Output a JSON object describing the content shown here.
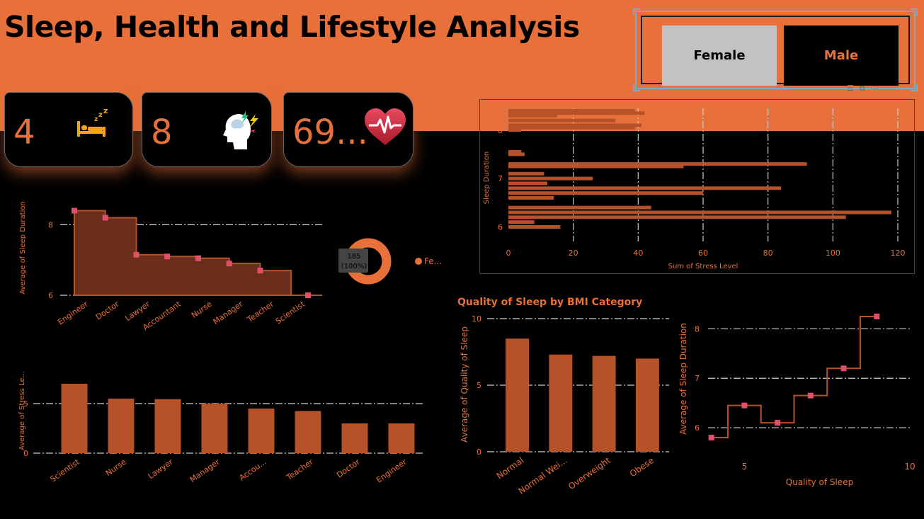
{
  "header": {
    "title": "Sleep, Health and Lifestyle Analysis",
    "slicer": {
      "options": [
        "Female",
        "Male"
      ],
      "selected": "Female"
    }
  },
  "kpis": [
    {
      "value": "4",
      "icon": "bed-sleep-icon"
    },
    {
      "value": "8",
      "icon": "stressed-head-icon"
    },
    {
      "value": "69...",
      "icon": "heart-rate-icon"
    }
  ],
  "colors": {
    "accent": "#e8703a",
    "bar": "#b5522a",
    "marker": "#e0506a",
    "area": "#6a2e1a",
    "slicer_selected": "#c2c2c2"
  },
  "chart_data": [
    {
      "id": "sleep-by-occupation",
      "type": "area",
      "ylabel": "Average of Sleep Duration",
      "categories": [
        "Engineer",
        "Doctor",
        "Lawyer",
        "Accountant",
        "Nurse",
        "Manager",
        "Teacher",
        "Scientist"
      ],
      "values": [
        8.4,
        8.2,
        7.15,
        7.1,
        7.05,
        6.9,
        6.7,
        6.0
      ],
      "yticks": [
        6,
        8
      ],
      "ylim": [
        6,
        8.45
      ],
      "grid": true
    },
    {
      "id": "gender-donut",
      "type": "pie",
      "labels": [
        "Fe..."
      ],
      "values": [
        185
      ],
      "value_label": "185",
      "percent_label": "(100%)"
    },
    {
      "id": "stress-by-sleep-duration",
      "type": "bar",
      "orientation": "horizontal",
      "xlabel": "Sum of Stress Level",
      "ylabel": "Sleep Duration",
      "xticks": [
        0,
        20,
        40,
        60,
        80,
        100,
        120
      ],
      "xlim": [
        0,
        120
      ],
      "yticks": [
        8,
        7,
        6
      ],
      "ylim": [
        5.7,
        8.45
      ],
      "grid": true,
      "points": [
        {
          "y": 8.4,
          "x": 39
        },
        {
          "y": 8.35,
          "x": 42
        },
        {
          "y": 8.3,
          "x": 15
        },
        {
          "y": 8.2,
          "x": 33
        },
        {
          "y": 8.1,
          "x": 41
        },
        {
          "y": 8.05,
          "x": 39
        },
        {
          "y": 8.0,
          "x": 4
        },
        {
          "y": 7.55,
          "x": 4
        },
        {
          "y": 7.5,
          "x": 5
        },
        {
          "y": 7.3,
          "x": 92
        },
        {
          "y": 7.25,
          "x": 54
        },
        {
          "y": 7.1,
          "x": 11
        },
        {
          "y": 7.0,
          "x": 26
        },
        {
          "y": 6.9,
          "x": 12
        },
        {
          "y": 6.8,
          "x": 84
        },
        {
          "y": 6.7,
          "x": 60
        },
        {
          "y": 6.6,
          "x": 14
        },
        {
          "y": 6.4,
          "x": 44
        },
        {
          "y": 6.3,
          "x": 118
        },
        {
          "y": 6.2,
          "x": 104
        },
        {
          "y": 6.1,
          "x": 8
        },
        {
          "y": 6.0,
          "x": 16
        }
      ]
    },
    {
      "id": "stress-by-occupation",
      "type": "bar",
      "ylabel": "Average of Stress Le...",
      "categories": [
        "Scientist",
        "Nurse",
        "Lawyer",
        "Manager",
        "Accou...",
        "Teacher",
        "Doctor",
        "Engineer"
      ],
      "values": [
        7.0,
        5.5,
        5.45,
        5.0,
        4.5,
        4.25,
        3.0,
        3.0
      ],
      "yticks": [
        0,
        5
      ],
      "ylim": [
        0,
        7.5
      ],
      "grid": true
    },
    {
      "id": "sleep-quality-by-bmi",
      "type": "bar",
      "title": "Quality of Sleep by BMI Category",
      "ylabel": "Average of Quality of Sleep",
      "categories": [
        "Normal",
        "Normal Wei...",
        "Overweight",
        "Obese"
      ],
      "values": [
        8.5,
        7.3,
        7.2,
        7.0
      ],
      "yticks": [
        0,
        5,
        10
      ],
      "ylim": [
        0,
        10
      ],
      "grid": true
    },
    {
      "id": "sleep-duration-by-quality",
      "type": "line",
      "xlabel": "Quality of Sleep",
      "ylabel": "Average of Sleep Duration",
      "x": [
        4,
        5,
        6,
        7,
        8,
        9
      ],
      "y": [
        5.8,
        6.45,
        6.1,
        6.65,
        7.2,
        8.25
      ],
      "xticks": [
        5,
        10
      ],
      "xlim": [
        3.9,
        10
      ],
      "yticks": [
        6,
        7,
        8
      ],
      "ylim": [
        5.7,
        8.35
      ],
      "grid": true
    }
  ]
}
